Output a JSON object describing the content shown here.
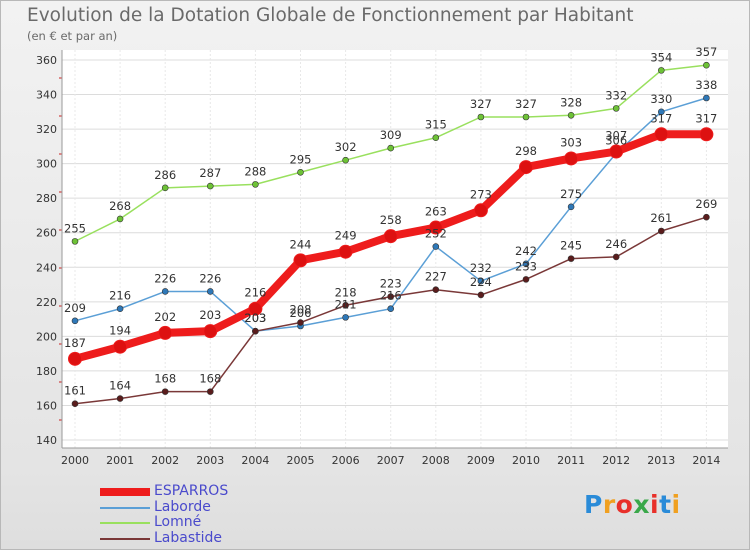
{
  "chart_data": {
    "type": "line",
    "title": "Evolution de la Dotation Globale de Fonctionnement par Habitant",
    "subtitle": "(en € et par an)",
    "categories": [
      "2000",
      "2001",
      "2002",
      "2003",
      "2004",
      "2005",
      "2006",
      "2007",
      "2008",
      "2009",
      "2010",
      "2011",
      "2012",
      "2013",
      "2014"
    ],
    "yticks": [
      140,
      160,
      180,
      200,
      220,
      240,
      260,
      280,
      300,
      320,
      340,
      360
    ],
    "ylim": [
      140,
      360
    ],
    "grid": true,
    "legend_position": "bottom-left",
    "series": [
      {
        "name": "ESPARROS",
        "color": "#ee1c1c",
        "marker": "#dd1111",
        "values": [
          187,
          194,
          202,
          203,
          216,
          244,
          249,
          258,
          263,
          273,
          298,
          303,
          307,
          317,
          317
        ]
      },
      {
        "name": "Laborde",
        "color": "#5b9fd6",
        "marker": "#2e78b8",
        "values": [
          209,
          216,
          226,
          226,
          203,
          206,
          211,
          216,
          252,
          232,
          242,
          275,
          306,
          330,
          338
        ]
      },
      {
        "name": "Lomné",
        "color": "#99e05e",
        "marker": "#6dc236",
        "values": [
          255,
          268,
          286,
          287,
          288,
          295,
          302,
          309,
          315,
          327,
          327,
          328,
          332,
          354,
          357
        ]
      },
      {
        "name": "Labastide",
        "color": "#7a3838",
        "marker": "#5a1c1c",
        "values": [
          161,
          164,
          168,
          168,
          203,
          208,
          218,
          223,
          227,
          224,
          233,
          245,
          246,
          261,
          269
        ]
      }
    ]
  },
  "logo": {
    "text": "Proxiti",
    "letter_colors": [
      "#2a8bd8",
      "#f0a020",
      "#e8302a",
      "#3aa84a",
      "#e8302a",
      "#2a8bd8",
      "#f0a020"
    ]
  }
}
